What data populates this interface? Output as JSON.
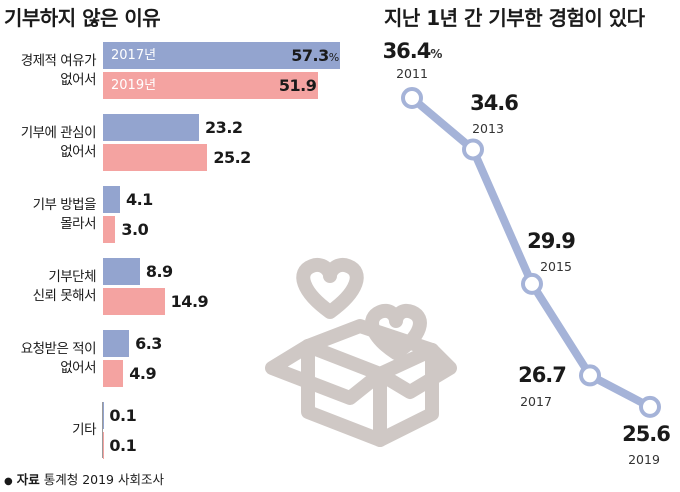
{
  "left_title": "기부하지 않은 이유",
  "right_title": "지난 1년 간 기부한 경험이 있다",
  "source": {
    "label": "자료",
    "text": "통계청 2019 사회조사"
  },
  "colors": {
    "series_2017": "#93a4cf",
    "series_2019": "#f4a3a1",
    "line": "#a5b3d8",
    "marker_fill": "#ffffff",
    "box_gray": "#cfc8c5"
  },
  "illustration": {
    "icon": "gift-box-with-hearts-icon"
  },
  "chart_data": [
    {
      "type": "bar",
      "orientation": "horizontal",
      "title": "기부하지 않은 이유",
      "categories": [
        "경제적 여유가\n없어서",
        "기부에 관심이\n없어서",
        "기부 방법을\n몰라서",
        "기부단체\n신뢰 못해서",
        "요청받은 적이\n없어서",
        "기타"
      ],
      "series": [
        {
          "name": "2017년",
          "values": [
            57.3,
            23.2,
            4.1,
            8.9,
            6.3,
            0.1
          ],
          "labels": [
            "57.3",
            "23.2",
            "4.1",
            "8.9",
            "6.3",
            "0.1"
          ]
        },
        {
          "name": "2019년",
          "values": [
            51.9,
            25.2,
            3.0,
            14.9,
            4.9,
            0.1
          ],
          "labels": [
            "51.9",
            "25.2",
            "3.0",
            "14.9",
            "4.9",
            "0.1"
          ]
        }
      ],
      "first_value_unit": "%"
    },
    {
      "type": "line",
      "title": "지난 1년 간 기부한 경험이 있다",
      "x": [
        "2011",
        "2013",
        "2015",
        "2017",
        "2019"
      ],
      "y": [
        36.4,
        34.6,
        29.9,
        26.7,
        25.6
      ],
      "labels": [
        "36.4",
        "34.6",
        "29.9",
        "26.7",
        "25.6"
      ],
      "first_value_unit": "%"
    }
  ]
}
